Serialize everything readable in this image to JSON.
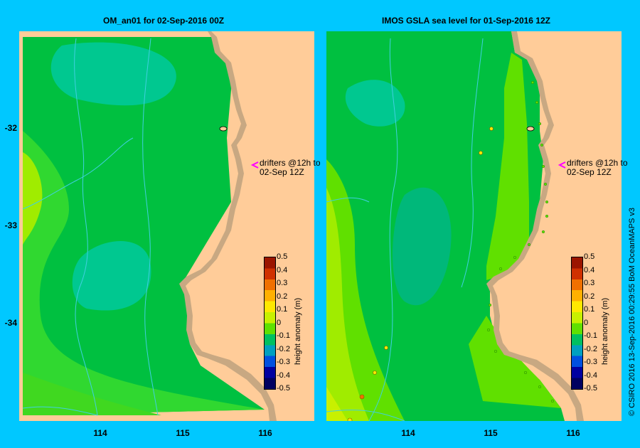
{
  "left_panel": {
    "title": "OM_an01  for 02-Sep-2016 00Z",
    "drifter_note_line1": "drifters @12h to",
    "drifter_note_line2": "02-Sep 12Z"
  },
  "right_panel": {
    "title": "IMOS  GSLA sea level   for 01-Sep-2016 12Z",
    "drifter_note_line1": "drifters @12h to",
    "drifter_note_line2": "02-Sep 12Z"
  },
  "y_ticks": [
    "-32",
    "-33",
    "-34"
  ],
  "x_ticks": [
    "114",
    "115",
    "116"
  ],
  "colorbar": {
    "title": "height anomaly (m)",
    "labels": [
      "0.5",
      "0.4",
      "0.3",
      "0.2",
      "0.1",
      "0",
      "-0.1",
      "-0.2",
      "-0.3",
      "-0.4",
      "-0.5"
    ],
    "colors": [
      "#9b1500",
      "#d03000",
      "#f07000",
      "#ffb000",
      "#ffe800",
      "#c8f000",
      "#60e000",
      "#00c060",
      "#00a0c0",
      "#0050e0",
      "#0000a0",
      "#000060"
    ]
  },
  "credit": "© CSIRO 2016   13-Sep-2016 00:29:55 BoM OceanMAPS v3",
  "colors": {
    "background": "#00c8ff",
    "land": "#ffcc99",
    "coast": "#c8a882",
    "contour": "#40d0e0"
  }
}
